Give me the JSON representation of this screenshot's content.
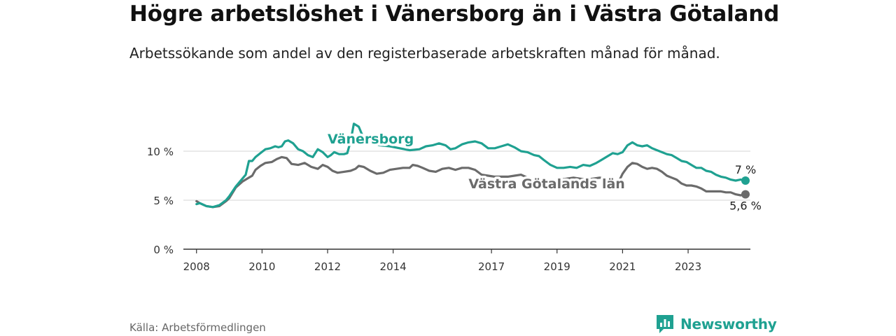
{
  "header": {
    "title": "Högre arbetslöshet i Vänersborg än i Västra Götaland",
    "subtitle": "Arbetssökande som andel av den registerbaserade arbetskraften månad för månad."
  },
  "footer": {
    "source": "Källa: Arbetsförmedlingen",
    "brand": "Newsworthy"
  },
  "colors": {
    "primary": "#1fa191",
    "secondary": "#6b6b6b",
    "grid": "#d4d4d4",
    "axis": "#333333",
    "brand_icon": "bar-chart-icon"
  },
  "chart_data": {
    "type": "line",
    "title": "Högre arbetslöshet i Vänersborg än i Västra Götaland",
    "xlabel": "",
    "ylabel": "",
    "xlim": [
      2007.6,
      2024.9
    ],
    "ylim": [
      0,
      14
    ],
    "y_ticks": [
      0,
      5,
      10
    ],
    "y_tick_labels": [
      "0 %",
      "5 %",
      "10 %"
    ],
    "x_ticks": [
      2008,
      2010,
      2012,
      2014,
      2017,
      2019,
      2021,
      2023
    ],
    "x_tick_labels": [
      "2008",
      "2010",
      "2012",
      "2014",
      "2017",
      "2019",
      "2021",
      "2023"
    ],
    "grid": true,
    "series": [
      {
        "name": "Vänersborg",
        "label": "Vänersborg",
        "end_label": "7 %",
        "end_value": 7.0,
        "label_position": [
          2012.0,
          10.8
        ],
        "points": [
          [
            2008.0,
            4.6
          ],
          [
            2008.1,
            4.7
          ],
          [
            2008.3,
            4.4
          ],
          [
            2008.5,
            4.3
          ],
          [
            2008.7,
            4.5
          ],
          [
            2008.9,
            5.0
          ],
          [
            2009.0,
            5.4
          ],
          [
            2009.2,
            6.4
          ],
          [
            2009.4,
            7.2
          ],
          [
            2009.5,
            7.6
          ],
          [
            2009.6,
            9.0
          ],
          [
            2009.7,
            9.0
          ],
          [
            2009.8,
            9.4
          ],
          [
            2009.95,
            9.8
          ],
          [
            2010.1,
            10.2
          ],
          [
            2010.25,
            10.3
          ],
          [
            2010.4,
            10.5
          ],
          [
            2010.5,
            10.4
          ],
          [
            2010.6,
            10.5
          ],
          [
            2010.7,
            11.0
          ],
          [
            2010.8,
            11.1
          ],
          [
            2010.95,
            10.8
          ],
          [
            2011.1,
            10.2
          ],
          [
            2011.25,
            10.0
          ],
          [
            2011.4,
            9.6
          ],
          [
            2011.55,
            9.4
          ],
          [
            2011.7,
            10.2
          ],
          [
            2011.85,
            9.9
          ],
          [
            2012.0,
            9.4
          ],
          [
            2012.1,
            9.6
          ],
          [
            2012.2,
            9.9
          ],
          [
            2012.35,
            9.7
          ],
          [
            2012.5,
            9.7
          ],
          [
            2012.6,
            9.8
          ],
          [
            2012.7,
            11.0
          ],
          [
            2012.8,
            12.8
          ],
          [
            2012.95,
            12.5
          ],
          [
            2013.1,
            11.3
          ],
          [
            2013.3,
            10.9
          ],
          [
            2013.6,
            10.6
          ],
          [
            2013.9,
            10.5
          ],
          [
            2014.2,
            10.3
          ],
          [
            2014.5,
            10.1
          ],
          [
            2014.8,
            10.2
          ],
          [
            2015.0,
            10.5
          ],
          [
            2015.2,
            10.6
          ],
          [
            2015.4,
            10.8
          ],
          [
            2015.6,
            10.6
          ],
          [
            2015.75,
            10.2
          ],
          [
            2015.9,
            10.3
          ],
          [
            2016.1,
            10.7
          ],
          [
            2016.3,
            10.9
          ],
          [
            2016.5,
            11.0
          ],
          [
            2016.7,
            10.8
          ],
          [
            2016.9,
            10.3
          ],
          [
            2017.1,
            10.3
          ],
          [
            2017.3,
            10.5
          ],
          [
            2017.5,
            10.7
          ],
          [
            2017.7,
            10.4
          ],
          [
            2017.9,
            10.0
          ],
          [
            2018.1,
            9.9
          ],
          [
            2018.3,
            9.6
          ],
          [
            2018.45,
            9.5
          ],
          [
            2018.6,
            9.1
          ],
          [
            2018.8,
            8.6
          ],
          [
            2019.0,
            8.3
          ],
          [
            2019.2,
            8.3
          ],
          [
            2019.4,
            8.4
          ],
          [
            2019.6,
            8.3
          ],
          [
            2019.8,
            8.6
          ],
          [
            2020.0,
            8.5
          ],
          [
            2020.2,
            8.8
          ],
          [
            2020.35,
            9.1
          ],
          [
            2020.5,
            9.4
          ],
          [
            2020.7,
            9.8
          ],
          [
            2020.85,
            9.7
          ],
          [
            2021.0,
            9.9
          ],
          [
            2021.15,
            10.6
          ],
          [
            2021.3,
            10.9
          ],
          [
            2021.45,
            10.6
          ],
          [
            2021.6,
            10.5
          ],
          [
            2021.75,
            10.6
          ],
          [
            2021.9,
            10.3
          ],
          [
            2022.05,
            10.1
          ],
          [
            2022.2,
            9.9
          ],
          [
            2022.35,
            9.7
          ],
          [
            2022.5,
            9.6
          ],
          [
            2022.65,
            9.3
          ],
          [
            2022.8,
            9.0
          ],
          [
            2022.95,
            8.9
          ],
          [
            2023.1,
            8.6
          ],
          [
            2023.25,
            8.3
          ],
          [
            2023.4,
            8.3
          ],
          [
            2023.55,
            8.0
          ],
          [
            2023.7,
            7.9
          ],
          [
            2023.85,
            7.6
          ],
          [
            2024.0,
            7.4
          ],
          [
            2024.15,
            7.3
          ],
          [
            2024.3,
            7.1
          ],
          [
            2024.45,
            7.0
          ],
          [
            2024.6,
            7.1
          ],
          [
            2024.75,
            7.0
          ]
        ]
      },
      {
        "name": "Västra Götalands län",
        "label": "Västra Götalands län",
        "end_label": "5,6 %",
        "end_value": 5.6,
        "label_position": [
          2016.3,
          6.2
        ],
        "points": [
          [
            2008.0,
            4.9
          ],
          [
            2008.1,
            4.7
          ],
          [
            2008.3,
            4.4
          ],
          [
            2008.5,
            4.3
          ],
          [
            2008.7,
            4.4
          ],
          [
            2008.9,
            4.9
          ],
          [
            2009.0,
            5.2
          ],
          [
            2009.2,
            6.3
          ],
          [
            2009.4,
            6.9
          ],
          [
            2009.6,
            7.3
          ],
          [
            2009.7,
            7.5
          ],
          [
            2009.8,
            8.1
          ],
          [
            2009.95,
            8.5
          ],
          [
            2010.1,
            8.8
          ],
          [
            2010.3,
            8.9
          ],
          [
            2010.45,
            9.2
          ],
          [
            2010.6,
            9.4
          ],
          [
            2010.75,
            9.3
          ],
          [
            2010.9,
            8.7
          ],
          [
            2011.1,
            8.6
          ],
          [
            2011.3,
            8.8
          ],
          [
            2011.5,
            8.4
          ],
          [
            2011.7,
            8.2
          ],
          [
            2011.85,
            8.6
          ],
          [
            2012.0,
            8.4
          ],
          [
            2012.15,
            8.0
          ],
          [
            2012.3,
            7.8
          ],
          [
            2012.5,
            7.9
          ],
          [
            2012.7,
            8.0
          ],
          [
            2012.85,
            8.2
          ],
          [
            2012.95,
            8.5
          ],
          [
            2013.1,
            8.4
          ],
          [
            2013.3,
            8.0
          ],
          [
            2013.5,
            7.7
          ],
          [
            2013.7,
            7.8
          ],
          [
            2013.9,
            8.1
          ],
          [
            2014.1,
            8.2
          ],
          [
            2014.3,
            8.3
          ],
          [
            2014.5,
            8.3
          ],
          [
            2014.6,
            8.6
          ],
          [
            2014.75,
            8.5
          ],
          [
            2014.9,
            8.3
          ],
          [
            2015.1,
            8.0
          ],
          [
            2015.3,
            7.9
          ],
          [
            2015.5,
            8.2
          ],
          [
            2015.7,
            8.3
          ],
          [
            2015.9,
            8.1
          ],
          [
            2016.1,
            8.3
          ],
          [
            2016.3,
            8.3
          ],
          [
            2016.5,
            8.1
          ],
          [
            2016.7,
            7.6
          ],
          [
            2016.9,
            7.5
          ],
          [
            2017.1,
            7.4
          ],
          [
            2017.3,
            7.4
          ],
          [
            2017.5,
            7.4
          ],
          [
            2017.7,
            7.5
          ],
          [
            2017.9,
            7.6
          ],
          [
            2018.1,
            7.3
          ],
          [
            2018.3,
            7.1
          ],
          [
            2018.5,
            7.0
          ],
          [
            2018.7,
            6.9
          ],
          [
            2018.9,
            7.0
          ],
          [
            2019.1,
            7.1
          ],
          [
            2019.3,
            7.2
          ],
          [
            2019.5,
            7.3
          ],
          [
            2019.7,
            7.2
          ],
          [
            2019.9,
            7.1
          ],
          [
            2020.1,
            7.2
          ],
          [
            2020.3,
            7.3
          ],
          [
            2020.5,
            7.2
          ],
          [
            2020.7,
            6.9
          ],
          [
            2020.9,
            7.0
          ],
          [
            2021.0,
            7.7
          ],
          [
            2021.15,
            8.4
          ],
          [
            2021.3,
            8.8
          ],
          [
            2021.45,
            8.7
          ],
          [
            2021.6,
            8.4
          ],
          [
            2021.75,
            8.2
          ],
          [
            2021.9,
            8.3
          ],
          [
            2022.05,
            8.2
          ],
          [
            2022.2,
            7.9
          ],
          [
            2022.35,
            7.5
          ],
          [
            2022.5,
            7.3
          ],
          [
            2022.65,
            7.1
          ],
          [
            2022.8,
            6.7
          ],
          [
            2022.95,
            6.5
          ],
          [
            2023.1,
            6.5
          ],
          [
            2023.25,
            6.4
          ],
          [
            2023.4,
            6.2
          ],
          [
            2023.55,
            5.9
          ],
          [
            2023.7,
            5.9
          ],
          [
            2023.85,
            5.9
          ],
          [
            2024.0,
            5.9
          ],
          [
            2024.15,
            5.8
          ],
          [
            2024.3,
            5.8
          ],
          [
            2024.45,
            5.6
          ],
          [
            2024.6,
            5.5
          ],
          [
            2024.75,
            5.6
          ]
        ]
      }
    ]
  }
}
